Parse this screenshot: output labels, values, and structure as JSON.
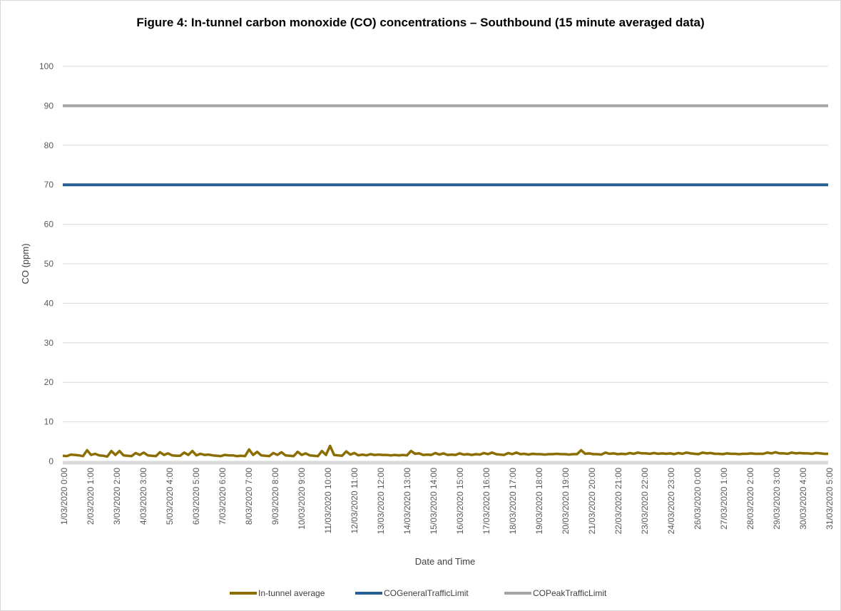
{
  "chart_data": {
    "type": "line",
    "title": "Figure 4: In-tunnel carbon monoxide (CO) concentrations – Southbound (15 minute averaged data)",
    "xlabel": "Date and Time",
    "ylabel": "CO (ppm)",
    "ylim": [
      0,
      100
    ],
    "yticks": [
      0,
      10,
      20,
      30,
      40,
      50,
      60,
      70,
      80,
      90,
      100
    ],
    "grid": true,
    "legend_position": "bottom",
    "x_tick_labels": [
      "1/03/2020 0:00",
      "2/03/2020 1:00",
      "3/03/2020 2:00",
      "4/03/2020 3:00",
      "5/03/2020 4:00",
      "6/03/2020 5:00",
      "7/03/2020 6:00",
      "8/03/2020 7:00",
      "9/03/2020 8:00",
      "10/03/2020 9:00",
      "11/03/2020 10:00",
      "12/03/2020 11:00",
      "13/03/2020 12:00",
      "14/03/2020 13:00",
      "15/03/2020 14:00",
      "16/03/2020 15:00",
      "17/03/2020 16:00",
      "18/03/2020 17:00",
      "19/03/2020 18:00",
      "20/03/2020 19:00",
      "21/03/2020 20:00",
      "22/03/2020 21:00",
      "23/03/2020 22:00",
      "24/03/2020 23:00",
      "26/03/2020 0:00",
      "27/03/2020 1:00",
      "28/03/2020 2:00",
      "29/03/2020 3:00",
      "30/03/2020 4:00",
      "31/03/2020 5:00"
    ],
    "series": [
      {
        "name": "In-tunnel average",
        "color": "#8c6d00",
        "values": [
          1.4,
          1.3,
          1.7,
          1.6,
          1.5,
          1.3,
          2.8,
          1.6,
          1.9,
          1.5,
          1.4,
          1.2,
          2.6,
          1.6,
          2.6,
          1.5,
          1.4,
          1.3,
          2.1,
          1.6,
          2.2,
          1.5,
          1.4,
          1.3,
          2.3,
          1.6,
          2.0,
          1.5,
          1.4,
          1.4,
          2.2,
          1.6,
          2.6,
          1.5,
          1.9,
          1.6,
          1.7,
          1.5,
          1.4,
          1.3,
          1.6,
          1.5,
          1.5,
          1.3,
          1.4,
          1.3,
          3.0,
          1.6,
          2.4,
          1.5,
          1.4,
          1.3,
          2.1,
          1.6,
          2.3,
          1.5,
          1.4,
          1.3,
          2.4,
          1.6,
          2.0,
          1.5,
          1.4,
          1.3,
          2.6,
          1.6,
          3.9,
          1.6,
          1.5,
          1.4,
          2.5,
          1.7,
          2.1,
          1.5,
          1.7,
          1.5,
          1.8,
          1.6,
          1.7,
          1.6,
          1.6,
          1.5,
          1.6,
          1.5,
          1.6,
          1.5,
          2.6,
          1.9,
          2.0,
          1.6,
          1.7,
          1.6,
          2.1,
          1.7,
          2.0,
          1.6,
          1.7,
          1.6,
          2.0,
          1.7,
          1.8,
          1.6,
          1.8,
          1.7,
          2.1,
          1.8,
          2.2,
          1.8,
          1.7,
          1.6,
          2.1,
          1.8,
          2.2,
          1.8,
          1.9,
          1.7,
          1.9,
          1.8,
          1.8,
          1.7,
          1.8,
          1.8,
          1.9,
          1.8,
          1.8,
          1.7,
          1.8,
          1.8,
          2.8,
          1.9,
          2.0,
          1.8,
          1.8,
          1.7,
          2.2,
          1.9,
          2.0,
          1.8,
          1.9,
          1.8,
          2.1,
          1.9,
          2.2,
          2.0,
          2.0,
          1.9,
          2.1,
          1.9,
          2.0,
          1.9,
          2.0,
          1.8,
          2.1,
          1.9,
          2.2,
          2.0,
          1.9,
          1.8,
          2.2,
          2.0,
          2.1,
          1.9,
          1.9,
          1.8,
          2.0,
          1.9,
          1.9,
          1.8,
          1.9,
          1.9,
          2.0,
          1.9,
          1.9,
          1.9,
          2.2,
          2.0,
          2.3,
          2.0,
          2.0,
          1.9,
          2.2,
          2.0,
          2.1,
          2.0,
          2.0,
          1.9,
          2.1,
          2.0,
          1.9,
          1.9
        ]
      },
      {
        "name": "COGeneralTrafficLimit",
        "color": "#255e91",
        "values": [
          70,
          70
        ]
      },
      {
        "name": "COPeakTrafficLimit",
        "color": "#a5a5a5",
        "values": [
          90,
          90
        ]
      }
    ]
  }
}
